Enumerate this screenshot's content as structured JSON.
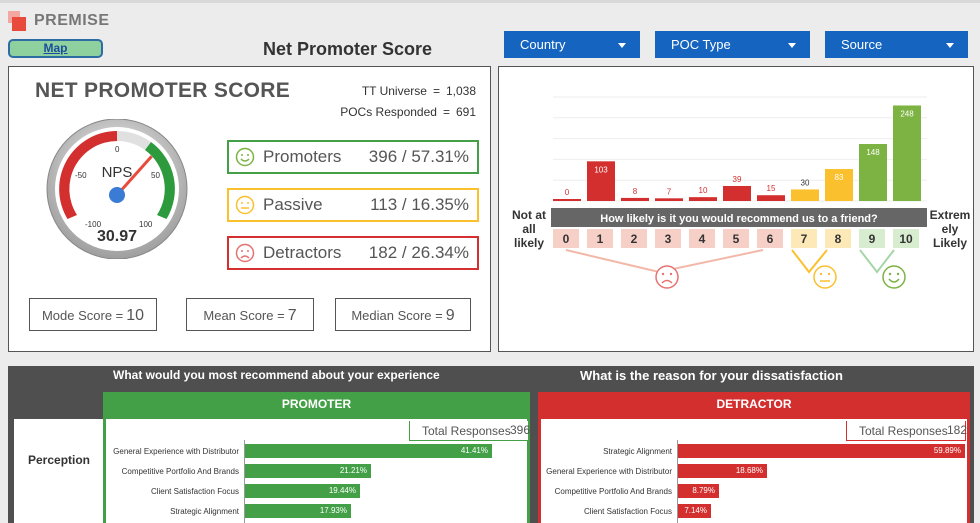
{
  "brand": {
    "name": "PREMISE"
  },
  "header": {
    "map_label": "Map",
    "title": "Net Promoter Score",
    "filters": [
      {
        "label": "Country"
      },
      {
        "label": "POC Type"
      },
      {
        "label": "Source"
      }
    ]
  },
  "nps_panel": {
    "title": "NET PROMOTER SCORE",
    "tt_universe_label": "TT Universe",
    "tt_universe_eq": "=",
    "tt_universe_value": "1,038",
    "pocs_label": "POCs Responded",
    "pocs_eq": "=",
    "pocs_value": "691",
    "gauge": {
      "label": "NPS",
      "value": "30.97",
      "nps_value": 30.97,
      "ticks": [
        "-100",
        "-50",
        "0",
        "50",
        "100"
      ]
    },
    "categories": [
      {
        "label": "Promoters",
        "value": "396 / 57.31%",
        "color": "#43a047"
      },
      {
        "label": "Passive",
        "value": "113 / 16.35%",
        "color": "#fbc02d"
      },
      {
        "label": "Detractors",
        "value": "182 / 26.34%",
        "color": "#d32f2f"
      }
    ],
    "scores": [
      {
        "label": "Mode Score =",
        "value": "10"
      },
      {
        "label": "Mean Score =",
        "value": "7"
      },
      {
        "label": "Median Score =",
        "value": "9"
      }
    ]
  },
  "chart_data": {
    "type": "bar",
    "title": "How likely is it you would recommend us to a friend?",
    "categories": [
      "0",
      "1",
      "2",
      "3",
      "4",
      "5",
      "6",
      "7",
      "8",
      "9",
      "10"
    ],
    "values": [
      0,
      103,
      8,
      7,
      10,
      39,
      15,
      30,
      83,
      148,
      248
    ],
    "left_label": "Not at all likely",
    "right_label": "Extremely Likely",
    "colors": [
      "#d32f2f",
      "#d32f2f",
      "#d32f2f",
      "#d32f2f",
      "#d32f2f",
      "#d32f2f",
      "#d32f2f",
      "#fbc02d",
      "#fbc02d",
      "#7cb342",
      "#7cb342"
    ],
    "ylim": [
      0,
      270
    ]
  },
  "bottom": {
    "left_question": "What would you most recommend about your experience",
    "right_question": "What is the reason for your dissatisfaction",
    "side_label": "Perception",
    "promoter": {
      "header": "PROMOTER",
      "total_label": "Total Responses",
      "total_value": "396",
      "items": [
        {
          "label": "General Experience with Distributor",
          "pct": "41.41%",
          "value": 41.41
        },
        {
          "label": "Competitive Portfolio And Brands",
          "pct": "21.21%",
          "value": 21.21
        },
        {
          "label": "Client Satisfaction Focus",
          "pct": "19.44%",
          "value": 19.44
        },
        {
          "label": "Strategic Alignment",
          "pct": "17.93%",
          "value": 17.93
        }
      ]
    },
    "detractor": {
      "header": "DETRACTOR",
      "total_label": "Total Responses",
      "total_value": "182",
      "items": [
        {
          "label": "Strategic Alignment",
          "pct": "59.89%",
          "value": 59.89
        },
        {
          "label": "General Experience with Distributor",
          "pct": "18.68%",
          "value": 18.68
        },
        {
          "label": "Competitive Portfolio And Brands",
          "pct": "8.79%",
          "value": 8.79
        },
        {
          "label": "Client Satisfaction Focus",
          "pct": "7.14%",
          "value": 7.14
        }
      ]
    }
  }
}
